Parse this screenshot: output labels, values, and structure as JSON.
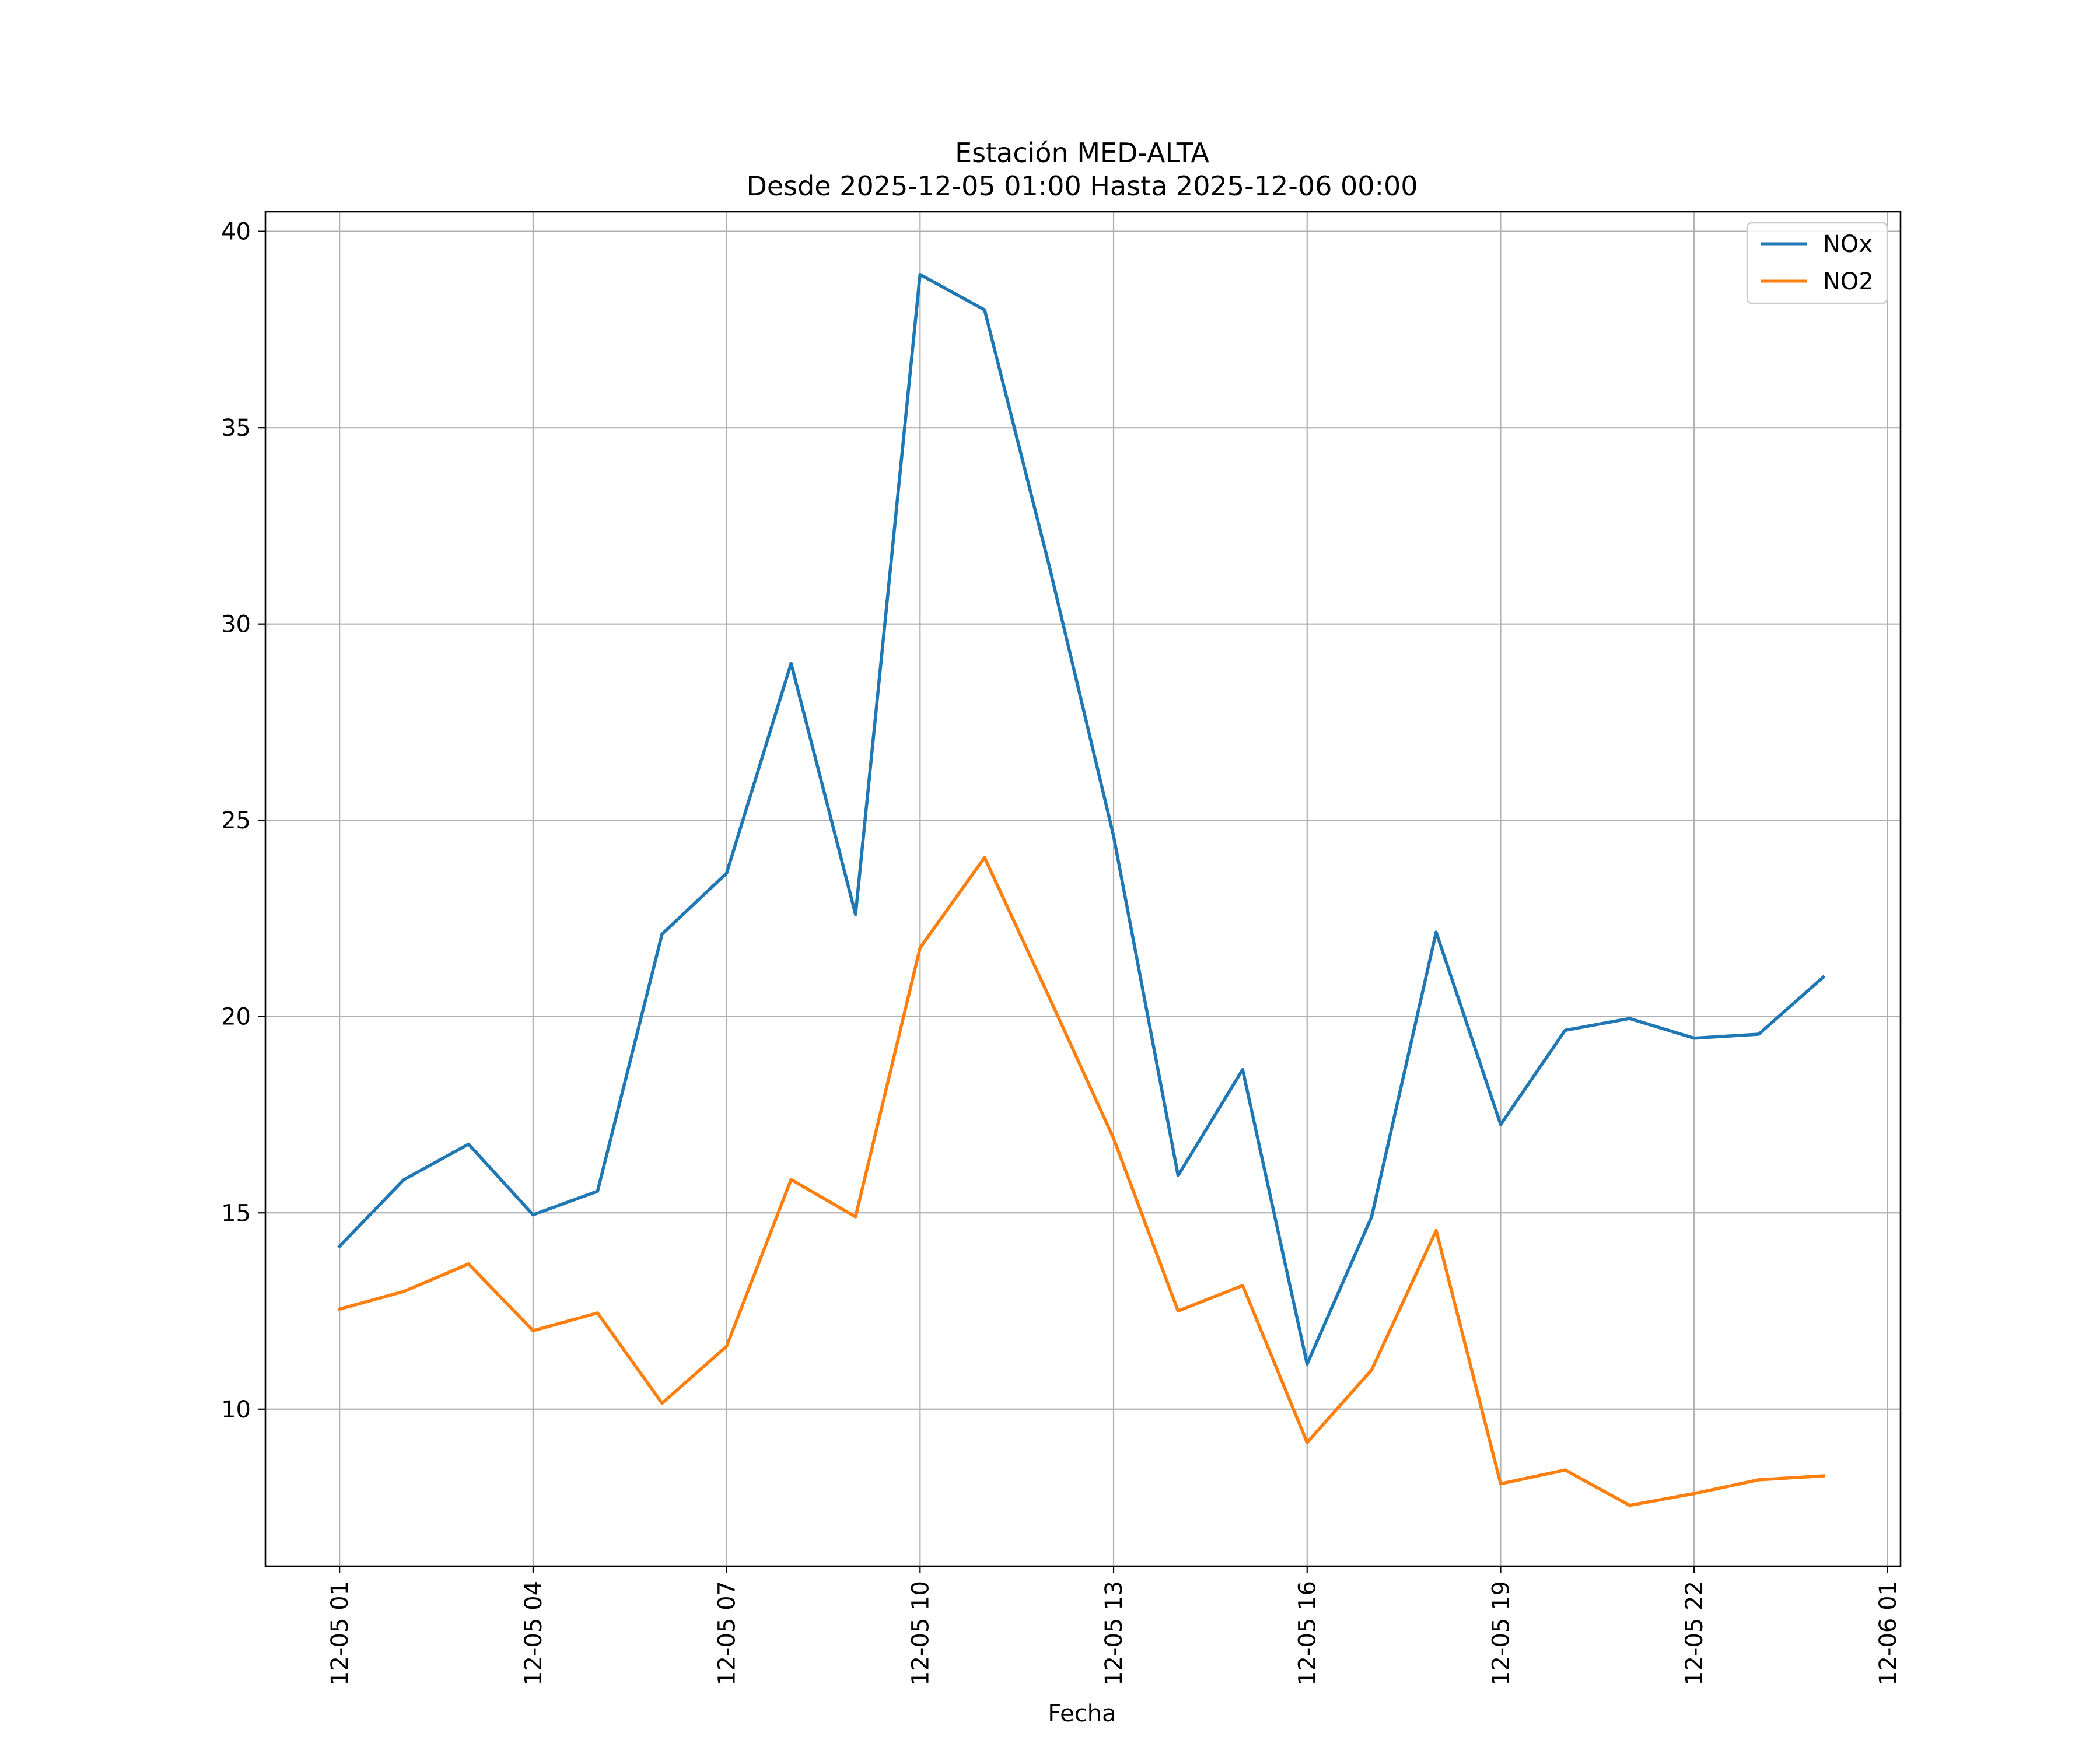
{
  "chart_data": {
    "type": "line",
    "title": "Estación MED-ALTA",
    "subtitle": "Desde 2025-12-05 01:00 Hasta 2025-12-06 00:00",
    "xlabel": "Fecha",
    "ylabel": "",
    "x_unit": "hour",
    "x_start": "2025-12-05 01:00",
    "x_hours": [
      1,
      2,
      3,
      4,
      5,
      6,
      7,
      8,
      9,
      10,
      11,
      12,
      13,
      14,
      15,
      16,
      17,
      18,
      19,
      20,
      21,
      22,
      23,
      24
    ],
    "xlim": [
      -0.15,
      25.2
    ],
    "xticks": [
      1,
      4,
      7,
      10,
      13,
      16,
      19,
      22,
      25
    ],
    "xtick_labels": [
      "12-05 01",
      "12-05 04",
      "12-05 07",
      "12-05 10",
      "12-05 13",
      "12-05 16",
      "12-05 19",
      "12-05 22",
      "12-06 01"
    ],
    "ylim": [
      6,
      40.5
    ],
    "yticks": [
      10,
      15,
      20,
      25,
      30,
      35,
      40
    ],
    "ytick_labels": [
      "10",
      "15",
      "20",
      "25",
      "30",
      "35",
      "40"
    ],
    "grid": true,
    "legend_position": "top-right",
    "series": [
      {
        "name": "NOx",
        "color": "#1f77b4",
        "values": [
          14.15,
          15.85,
          16.75,
          14.95,
          15.55,
          22.1,
          23.65,
          29.0,
          22.6,
          38.9,
          38.0,
          31.5,
          24.6,
          15.95,
          18.65,
          11.15,
          14.9,
          22.15,
          17.25,
          19.65,
          19.95,
          19.45,
          19.55,
          21.0
        ]
      },
      {
        "name": "NO2",
        "color": "#ff7f0e",
        "values": [
          12.55,
          13.0,
          13.7,
          12.0,
          12.45,
          10.15,
          11.6,
          15.85,
          14.9,
          21.75,
          24.05,
          20.5,
          16.9,
          12.5,
          13.15,
          9.15,
          11.0,
          14.55,
          8.1,
          8.45,
          7.55,
          7.85,
          8.2,
          8.3
        ]
      }
    ]
  }
}
